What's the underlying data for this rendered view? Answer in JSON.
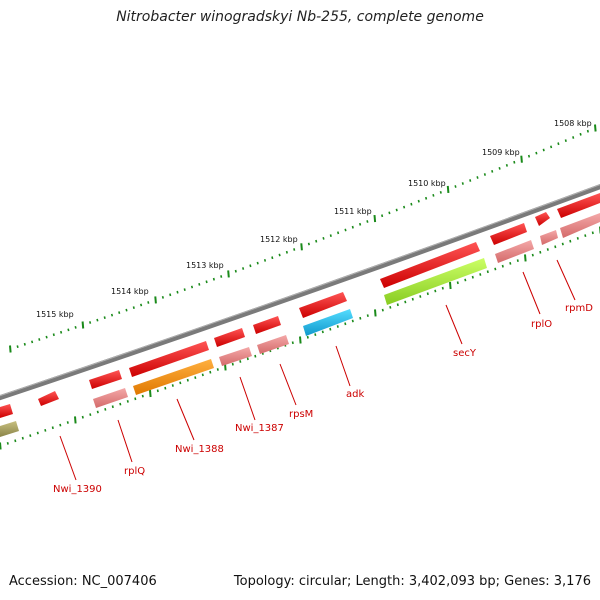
{
  "title": "Nitrobacter winogradskyi Nb-255, complete genome",
  "accession_label": "Accession: NC_007406",
  "summary": "Topology: circular; Length: 3,402,093 bp; Genes: 3,176",
  "colors": {
    "backbone": "#808080",
    "cds": "#ee1111",
    "gene": "#e88080",
    "tick_major": "#1a8a1a",
    "tick_minor": "#1a8a1a",
    "label": "#cc0000"
  },
  "scale": {
    "labels": [
      "1508 kbp",
      "1509 kbp",
      "1510 kbp",
      "1511 kbp",
      "1512 kbp",
      "1513 kbp",
      "1514 kbp",
      "1515 kbp"
    ]
  },
  "features": [
    {
      "name": "rpmD",
      "kind": "cds",
      "color": "#ee1111"
    },
    {
      "name": "rplO",
      "kind": "cds",
      "color": "#ee1111"
    },
    {
      "name": "secY",
      "kind": "cds",
      "color": "#ee1111",
      "second_color": "#aaee33"
    },
    {
      "name": "adk",
      "kind": "cds",
      "color": "#ee1111",
      "second_color": "#22aadd"
    },
    {
      "name": "rpsM",
      "kind": "cds",
      "color": "#ee1111"
    },
    {
      "name": "Nwi_1387",
      "kind": "cds",
      "color": "#ee1111"
    },
    {
      "name": "Nwi_1388",
      "kind": "cds",
      "color": "#ee1111",
      "second_color": "#ee8800"
    },
    {
      "name": "rplQ",
      "kind": "cds",
      "color": "#ee1111"
    },
    {
      "name": "Nwi_1390",
      "kind": "cds",
      "color": "#ee1111",
      "second_color": "#aaa060"
    }
  ]
}
